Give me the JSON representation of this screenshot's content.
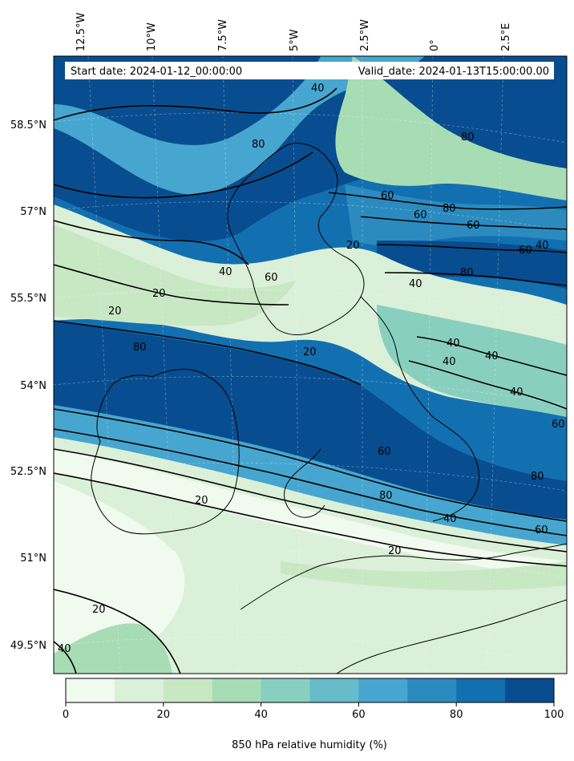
{
  "header": {
    "start_date": "Start date: 2024-01-12_00:00:00",
    "valid_date": "Valid_date: 2024-01-13T15:00:00.00"
  },
  "map": {
    "longitude_labels": [
      "12.5°W",
      "10°W",
      "7.5°W",
      "5°W",
      "2.5°W",
      "0°",
      "2.5°E"
    ],
    "latitude_labels": [
      "58.5°N",
      "57°N",
      "55.5°N",
      "54°N",
      "52.5°N",
      "51°N",
      "49.5°N"
    ],
    "contour_labels": [
      "40",
      "80",
      "80",
      "60",
      "60",
      "60",
      "40",
      "40",
      "20",
      "80",
      "40",
      "20",
      "20",
      "20",
      "80",
      "60",
      "80",
      "40",
      "40",
      "40",
      "40",
      "60",
      "60",
      "80",
      "80",
      "60",
      "40",
      "20",
      "20",
      "40",
      "20",
      "60"
    ],
    "colors": {
      "ocean_dark": "#084b8b",
      "bin_0": "#f1faee",
      "bin_10": "#dbf0d8",
      "bin_20": "#c8e8c4",
      "bin_30": "#a8dcb4",
      "bin_40": "#89cfbf",
      "bin_50": "#66bcc8",
      "bin_60": "#46a6cf",
      "bin_70": "#2b8bbf",
      "bin_80": "#1270b0",
      "bin_90": "#084d8f"
    }
  },
  "colorbar": {
    "label": "850 hPa relative humidity (%)",
    "ticks": [
      "0",
      "20",
      "40",
      "60",
      "80",
      "100"
    ],
    "colors": [
      "#f1faee",
      "#dbf0d8",
      "#c8e8c4",
      "#a8dcb4",
      "#89cfbf",
      "#66bcc8",
      "#46a6cf",
      "#2b8bbf",
      "#1270b0",
      "#084d8f"
    ]
  }
}
